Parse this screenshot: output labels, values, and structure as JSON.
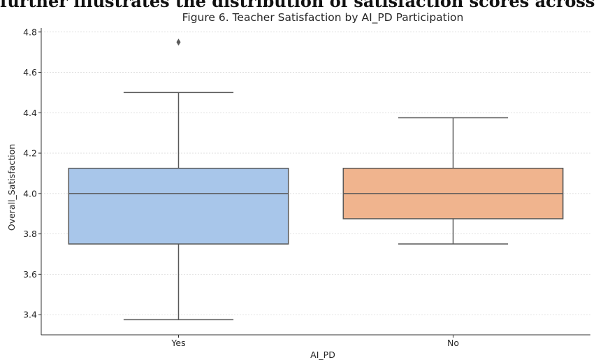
{
  "header_text": "further illustrates the distribution of satisfaction scores across",
  "chart_data": {
    "type": "box",
    "title": "Figure 6. Teacher Satisfaction by AI_PD Participation",
    "xlabel": "AI_PD",
    "ylabel": "Overall_Satisfaction",
    "ylim": [
      3.3,
      4.82
    ],
    "yticks": [
      "3.4",
      "3.6",
      "3.8",
      "4.0",
      "4.2",
      "4.4",
      "4.6",
      "4.8"
    ],
    "grid": true,
    "categories": [
      "Yes",
      "No"
    ],
    "boxes": [
      {
        "category": "Yes",
        "whisker_low": 3.375,
        "q1": 3.75,
        "median": 4.0,
        "q3": 4.125,
        "whisker_high": 4.5,
        "outliers": [
          4.75
        ],
        "color": "#a8c6ea"
      },
      {
        "category": "No",
        "whisker_low": 3.75,
        "q1": 3.875,
        "median": 4.0,
        "q3": 4.125,
        "whisker_high": 4.375,
        "outliers": [],
        "color": "#f0b48e"
      }
    ]
  }
}
